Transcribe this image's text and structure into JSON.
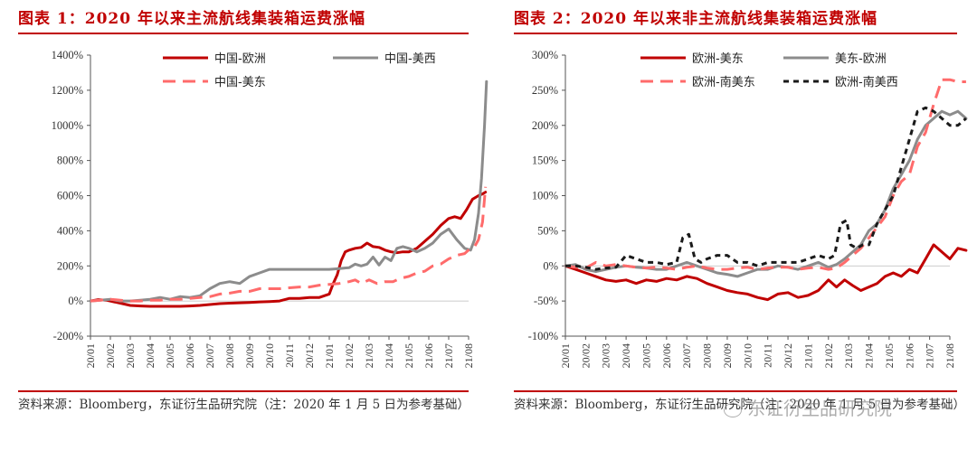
{
  "charts": [
    {
      "title": "图表 1：2020 年以来主流航线集装箱运费涨幅",
      "source": "资料来源：Bloomberg，东证衍生品研究院（注：2020 年 1 月 5 日为参考基础）",
      "chart_data": {
        "type": "line",
        "x_ticks": [
          "20/01",
          "20/02",
          "20/03",
          "20/04",
          "20/05",
          "20/06",
          "20/07",
          "20/08",
          "20/09",
          "20/10",
          "20/11",
          "20/12",
          "21/01",
          "21/02",
          "21/03",
          "21/04",
          "21/05",
          "21/06",
          "21/07",
          "21/08"
        ],
        "ylim": [
          -200,
          1400
        ],
        "y_ticks": [
          -200,
          0,
          200,
          400,
          600,
          800,
          1000,
          1200,
          1400
        ],
        "y_tick_labels": [
          "-200%",
          "0%",
          "200%",
          "400%",
          "600%",
          "800%",
          "1000%",
          "1200%",
          "1400%"
        ],
        "legend": [
          "中国-欧洲",
          "中国-美西",
          "中国-美东"
        ],
        "series": [
          {
            "name": "中国-欧洲",
            "color": "#c00000",
            "dash": "solid",
            "x": [
              0,
              0.4,
              0.8,
              1.2,
              1.6,
              2,
              2.5,
              3,
              3.5,
              4,
              4.5,
              5,
              5.5,
              6,
              6.5,
              7,
              7.5,
              8,
              8.5,
              9,
              9.5,
              10,
              10.5,
              11,
              11.5,
              12,
              12.2,
              12.4,
              12.6,
              12.8,
              13,
              13.3,
              13.6,
              13.9,
              14.2,
              14.5,
              14.8,
              15.1,
              15.4,
              15.7,
              16,
              16.4,
              16.8,
              17.2,
              17.6,
              18,
              18.3,
              18.6,
              18.9,
              19.2,
              19.5,
              19.7,
              19.85
            ],
            "y": [
              0,
              8,
              5,
              -5,
              -15,
              -25,
              -28,
              -30,
              -30,
              -30,
              -30,
              -28,
              -25,
              -20,
              -15,
              -12,
              -10,
              -8,
              -5,
              -3,
              0,
              15,
              15,
              20,
              20,
              40,
              100,
              150,
              230,
              280,
              290,
              300,
              305,
              330,
              310,
              305,
              290,
              280,
              275,
              280,
              280,
              300,
              340,
              380,
              430,
              470,
              480,
              470,
              520,
              580,
              600,
              610,
              620
            ]
          },
          {
            "name": "中国-美西",
            "color": "#8c8c8c",
            "dash": "solid",
            "x": [
              0,
              0.5,
              1,
              1.5,
              2,
              2.5,
              3,
              3.5,
              4,
              4.5,
              5,
              5.5,
              6,
              6.5,
              7,
              7.5,
              8,
              8.5,
              9,
              9.5,
              10,
              10.5,
              11,
              11.5,
              12,
              12.5,
              13,
              13.3,
              13.6,
              13.9,
              14.2,
              14.5,
              14.8,
              15.1,
              15.4,
              15.7,
              16,
              16.4,
              16.8,
              17.2,
              17.6,
              18,
              18.4,
              18.8,
              19.1,
              19.3,
              19.5,
              19.65,
              19.8,
              19.9
            ],
            "y": [
              0,
              5,
              10,
              0,
              0,
              5,
              10,
              20,
              10,
              25,
              20,
              30,
              70,
              100,
              110,
              100,
              140,
              160,
              180,
              180,
              180,
              180,
              180,
              180,
              180,
              185,
              190,
              210,
              200,
              210,
              250,
              205,
              250,
              230,
              300,
              310,
              300,
              280,
              300,
              330,
              380,
              410,
              350,
              300,
              290,
              350,
              500,
              700,
              1000,
              1250
            ]
          },
          {
            "name": "中国-美东",
            "color": "#ff6b6b",
            "dash": "dashed",
            "x": [
              0,
              0.5,
              1,
              1.5,
              2,
              2.5,
              3,
              3.5,
              4,
              4.5,
              5,
              5.5,
              6,
              6.5,
              7,
              7.5,
              8,
              8.5,
              9,
              9.5,
              10,
              10.5,
              11,
              11.5,
              12,
              12.5,
              13,
              13.3,
              13.6,
              14,
              14.4,
              14.8,
              15.2,
              15.6,
              16,
              16.4,
              16.8,
              17.2,
              17.6,
              18,
              18.4,
              18.8,
              19.1,
              19.3,
              19.5,
              19.7,
              19.85
            ],
            "y": [
              0,
              5,
              10,
              5,
              0,
              0,
              5,
              5,
              10,
              10,
              15,
              20,
              25,
              40,
              45,
              55,
              55,
              70,
              70,
              70,
              75,
              80,
              80,
              90,
              95,
              100,
              110,
              120,
              100,
              120,
              100,
              110,
              110,
              130,
              140,
              160,
              170,
              200,
              210,
              240,
              260,
              270,
              300,
              310,
              350,
              450,
              650
            ]
          }
        ]
      }
    },
    {
      "title": "图表 2：2020 年以来非主流航线集装箱运费涨幅",
      "source": "资料来源：Bloomberg，东证衍生品研究院（注：2020 年 1 月 5 日为参考基础）",
      "chart_data": {
        "type": "line",
        "x_ticks": [
          "20/01",
          "20/02",
          "20/03",
          "20/04",
          "20/05",
          "20/06",
          "20/07",
          "20/08",
          "20/09",
          "20/10",
          "20/11",
          "20/12",
          "21/01",
          "21/02",
          "21/03",
          "21/04",
          "21/05",
          "21/06",
          "21/07",
          "21/08"
        ],
        "ylim": [
          -100,
          300
        ],
        "y_ticks": [
          -100,
          -50,
          0,
          50,
          100,
          150,
          200,
          250,
          300
        ],
        "y_tick_labels": [
          "-100%",
          "-50%",
          "0%",
          "50%",
          "100%",
          "150%",
          "200%",
          "250%",
          "300%"
        ],
        "legend": [
          "欧洲-美东",
          "美东-欧洲",
          "欧洲-南美东",
          "欧洲-南美西"
        ],
        "series": [
          {
            "name": "欧洲-美东",
            "color": "#c00000",
            "dash": "solid",
            "x": [
              0,
              0.5,
              1,
              1.5,
              2,
              2.5,
              3,
              3.5,
              4,
              4.5,
              5,
              5.5,
              6,
              6.5,
              7,
              7.5,
              8,
              8.5,
              9,
              9.5,
              10,
              10.5,
              11,
              11.5,
              12,
              12.5,
              13,
              13.4,
              13.8,
              14.2,
              14.6,
              15,
              15.4,
              15.8,
              16.2,
              16.6,
              17,
              17.4,
              17.8,
              18.2,
              18.6,
              19,
              19.4,
              19.8
            ],
            "y": [
              0,
              -5,
              -10,
              -15,
              -20,
              -22,
              -20,
              -25,
              -20,
              -22,
              -18,
              -20,
              -15,
              -18,
              -25,
              -30,
              -35,
              -38,
              -40,
              -45,
              -48,
              -40,
              -38,
              -45,
              -42,
              -35,
              -20,
              -30,
              -20,
              -28,
              -35,
              -30,
              -25,
              -15,
              -10,
              -15,
              -5,
              -10,
              10,
              30,
              20,
              10,
              25,
              22
            ]
          },
          {
            "name": "美东-欧洲",
            "color": "#8c8c8c",
            "dash": "solid",
            "x": [
              0,
              0.5,
              1,
              1.5,
              2,
              2.5,
              3,
              3.5,
              4,
              4.5,
              5,
              5.5,
              6,
              6.5,
              7,
              7.5,
              8,
              8.5,
              9,
              9.5,
              10,
              10.5,
              11,
              11.5,
              12,
              12.5,
              13,
              13.4,
              13.8,
              14.2,
              14.6,
              15,
              15.4,
              15.8,
              16.2,
              16.6,
              17,
              17.4,
              17.8,
              18.2,
              18.6,
              19,
              19.4,
              19.8
            ],
            "y": [
              0,
              2,
              -5,
              -8,
              -5,
              -2,
              0,
              -2,
              -3,
              -5,
              -5,
              0,
              5,
              0,
              -5,
              -10,
              -12,
              -15,
              -10,
              -5,
              -5,
              0,
              -2,
              -5,
              0,
              5,
              -2,
              2,
              10,
              20,
              30,
              50,
              60,
              80,
              110,
              130,
              150,
              180,
              200,
              210,
              220,
              215,
              220,
              210
            ]
          },
          {
            "name": "欧洲-南美东",
            "color": "#ff6b6b",
            "dash": "dashed",
            "x": [
              0,
              0.5,
              1,
              1.5,
              2,
              2.5,
              3,
              3.5,
              4,
              4.5,
              5,
              5.5,
              6,
              6.5,
              7,
              7.5,
              8,
              8.5,
              9,
              9.5,
              10,
              10.5,
              11,
              11.5,
              12,
              12.5,
              13,
              13.4,
              13.8,
              14.2,
              14.6,
              15,
              15.4,
              15.8,
              16.2,
              16.6,
              17,
              17.4,
              17.8,
              18.2,
              18.6,
              19,
              19.4,
              19.8
            ],
            "y": [
              0,
              -2,
              -3,
              5,
              0,
              2,
              0,
              -2,
              -3,
              -2,
              -3,
              -5,
              -2,
              0,
              -3,
              -5,
              -5,
              -3,
              -2,
              -5,
              -3,
              -2,
              -2,
              -5,
              -3,
              -2,
              -5,
              -3,
              5,
              15,
              25,
              40,
              55,
              70,
              100,
              120,
              130,
              170,
              190,
              230,
              265,
              265,
              262,
              262
            ]
          },
          {
            "name": "欧洲-南美西",
            "color": "#1a1a1a",
            "dash": "dashed",
            "x": [
              0,
              0.5,
              1,
              1.5,
              2,
              2.5,
              3,
              3.5,
              4,
              4.5,
              5,
              5.5,
              5.8,
              6.1,
              6.4,
              6.7,
              7,
              7.5,
              8,
              8.5,
              9,
              9.5,
              10,
              10.5,
              11,
              11.5,
              12,
              12.5,
              13,
              13.3,
              13.6,
              13.9,
              14.1,
              14.4,
              14.7,
              15,
              15.4,
              15.8,
              16.2,
              16.6,
              17,
              17.4,
              17.8,
              18.2,
              18.6,
              19,
              19.4,
              19.8
            ],
            "y": [
              0,
              0,
              -2,
              -5,
              -3,
              -2,
              15,
              10,
              5,
              5,
              2,
              5,
              40,
              45,
              10,
              5,
              10,
              15,
              15,
              5,
              5,
              0,
              5,
              5,
              5,
              5,
              10,
              15,
              10,
              15,
              60,
              65,
              30,
              25,
              30,
              30,
              60,
              80,
              100,
              140,
              180,
              220,
              225,
              220,
              210,
              200,
              200,
              210
            ]
          }
        ]
      }
    }
  ],
  "watermark": "东证衍生品研究院"
}
